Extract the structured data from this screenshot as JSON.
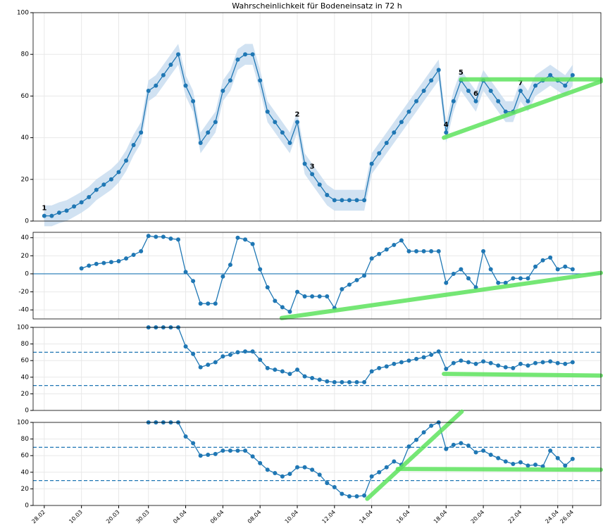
{
  "chart_data": [
    {
      "type": "line",
      "title": "Wahrscheinlichkeit für Bodeneinsatz in 72 h",
      "values": [
        2.5,
        2.5,
        4,
        5,
        7,
        9,
        11.5,
        15,
        17.5,
        20,
        23.5,
        29,
        36.5,
        42.5,
        62.5,
        65,
        70,
        75,
        80,
        65,
        57.5,
        37.5,
        42.5,
        47.5,
        62.5,
        67.5,
        77.5,
        80,
        80,
        67.5,
        52.5,
        47.5,
        42.5,
        37.5,
        47.5,
        27.5,
        22.5,
        17.5,
        12.5,
        10,
        10,
        10,
        10,
        10,
        27.5,
        32.5,
        37.5,
        42.5,
        47.5,
        52.5,
        57.5,
        62.5,
        67.5,
        72.5,
        42.5,
        57.5,
        67.5,
        62.5,
        57.5,
        67.5,
        62.5,
        57.5,
        52.5,
        52.5,
        62.5,
        57.5,
        65,
        67.5,
        70,
        67.5,
        65,
        70
      ],
      "ci": 5,
      "color": "#1f77b4",
      "band_color": "#c6dbef",
      "ylim": [
        0,
        100
      ],
      "yticks": [
        0,
        20,
        40,
        60,
        80,
        100
      ],
      "xlim": [
        -1.5,
        74.8
      ],
      "grid": true,
      "annotations": [
        {
          "text": "1",
          "index": 0
        },
        {
          "text": "2",
          "index": 34
        },
        {
          "text": "3",
          "index": 36
        },
        {
          "text": "4",
          "index": 54
        },
        {
          "text": "5",
          "index": 56
        },
        {
          "text": "6",
          "index": 58
        },
        {
          "text": "7",
          "index": 64
        }
      ],
      "overlays": [
        {
          "x": [
            53.7,
            74.8
          ],
          "y": [
            40,
            67
          ]
        },
        {
          "x": [
            56,
            74.8
          ],
          "y": [
            68,
            68
          ]
        }
      ],
      "overlay_color": "#5ee35e"
    },
    {
      "type": "line",
      "values": [
        null,
        null,
        null,
        null,
        null,
        6,
        9,
        11,
        12,
        13,
        14,
        17,
        21,
        25,
        42,
        41,
        41,
        39,
        38,
        2,
        -8,
        -33,
        -33,
        -33,
        -3,
        10,
        40,
        38,
        33,
        5,
        -15,
        -30,
        -37,
        -42,
        -20,
        -25,
        -25,
        -25,
        -25,
        -38,
        -17,
        -12,
        -7,
        -2,
        17,
        22,
        27,
        32,
        37,
        25,
        25,
        25,
        25,
        25,
        -10,
        0,
        5,
        -5,
        -15,
        25,
        5,
        -10,
        -10,
        -5,
        -5,
        -5,
        8,
        15,
        18,
        5,
        8,
        5
      ],
      "color": "#1f77b4",
      "ylim": [
        -50,
        46
      ],
      "yticks": [
        -40,
        -20,
        0,
        20,
        40
      ],
      "xlim": [
        -1.5,
        74.8
      ],
      "grid": true,
      "hlines": [
        0
      ],
      "hline_style": "solid",
      "overlays": [
        {
          "x": [
            31.9,
            74.8
          ],
          "y": [
            -49,
            1
          ]
        }
      ],
      "overlay_color": "#5ee35e"
    },
    {
      "type": "line",
      "values": [
        null,
        null,
        null,
        null,
        null,
        null,
        null,
        null,
        null,
        null,
        null,
        null,
        null,
        null,
        100,
        100,
        100,
        100,
        100,
        77,
        68,
        52,
        55,
        58,
        65,
        67,
        70,
        71,
        71,
        61,
        51,
        49,
        47,
        44,
        49,
        41,
        39,
        37,
        35,
        34,
        34,
        34,
        34,
        34,
        47,
        51,
        53,
        56,
        58,
        60,
        62,
        64,
        67,
        71,
        50,
        57,
        60,
        58,
        56,
        59,
        57,
        54,
        52,
        51,
        56,
        54,
        57,
        58,
        59,
        57,
        56,
        58
      ],
      "color": "#1f77b4",
      "ylim": [
        0,
        100
      ],
      "yticks": [
        0,
        20,
        40,
        60,
        80,
        100
      ],
      "xlim": [
        -1.5,
        74.8
      ],
      "grid": true,
      "hlines": [
        70,
        30
      ],
      "hline_style": "dashed",
      "overlays": [
        {
          "x": [
            53.7,
            74.8
          ],
          "y": [
            44,
            42
          ]
        }
      ],
      "overlay_color": "#5ee35e"
    },
    {
      "type": "line",
      "values": [
        null,
        null,
        null,
        null,
        null,
        null,
        null,
        null,
        null,
        null,
        null,
        null,
        null,
        null,
        100,
        100,
        100,
        100,
        100,
        83,
        75,
        60,
        61,
        62,
        66,
        66,
        66,
        66,
        59,
        51,
        43,
        39,
        35,
        38,
        46,
        46,
        43,
        37,
        27,
        22,
        14,
        11,
        11,
        12,
        35,
        40,
        46,
        53,
        49,
        71,
        79,
        88,
        96,
        100,
        68,
        73,
        75,
        72,
        64,
        66,
        61,
        57,
        53,
        50,
        52,
        48,
        49,
        47,
        66,
        57,
        48,
        56
      ],
      "color": "#1f77b4",
      "ylim": [
        0,
        100
      ],
      "yticks": [
        0,
        20,
        40,
        60,
        80,
        100
      ],
      "xlim": [
        -1.5,
        74.8
      ],
      "grid": true,
      "hlines": [
        70,
        30
      ],
      "hline_style": "dashed",
      "categories": [
        "28.02",
        null,
        null,
        null,
        null,
        "10.03",
        null,
        null,
        null,
        null,
        "20.03",
        null,
        null,
        null,
        "30.03",
        null,
        null,
        null,
        null,
        "04.04",
        null,
        null,
        null,
        null,
        "06.04",
        null,
        null,
        null,
        null,
        "08.04",
        null,
        null,
        null,
        null,
        "10.04",
        null,
        null,
        null,
        null,
        "12.04",
        null,
        null,
        null,
        null,
        "14.04",
        null,
        null,
        null,
        null,
        "16.04",
        null,
        null,
        null,
        null,
        "18.04",
        null,
        null,
        null,
        null,
        "20.04",
        null,
        null,
        null,
        null,
        "22.04",
        null,
        null,
        null,
        null,
        "24.04",
        null,
        "26.04"
      ],
      "overlays": [
        {
          "x": [
            43.4,
            56.1
          ],
          "y": [
            8,
            113
          ]
        },
        {
          "x": [
            47.5,
            74.8
          ],
          "y": [
            44,
            43
          ]
        }
      ],
      "overlay_color": "#5ee35e"
    }
  ]
}
